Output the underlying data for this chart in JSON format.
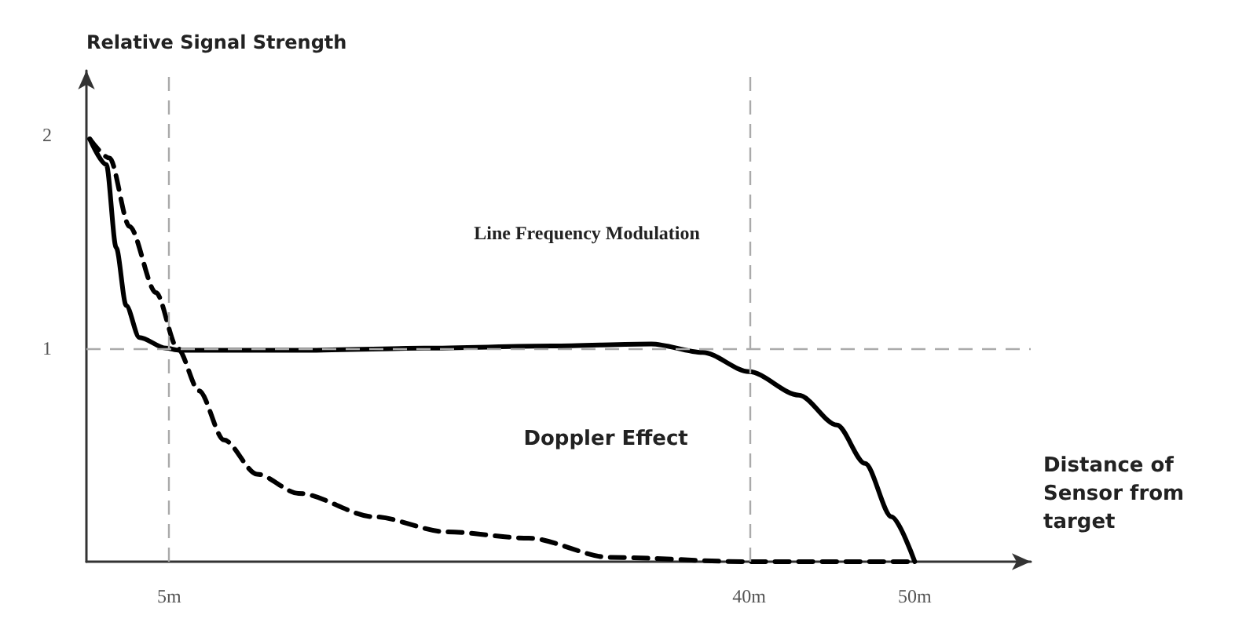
{
  "chart_data": {
    "type": "line",
    "ylabel": "Relative Signal Strength",
    "xlabel": "Distance of Sensor from target",
    "xlim": [
      0,
      57
    ],
    "xticks": [
      {
        "value": 5,
        "label": "5m"
      },
      {
        "value": 40,
        "label": "40m"
      },
      {
        "value": 50,
        "label": "50m"
      }
    ],
    "ylim": [
      0,
      2.3
    ],
    "yticks": [
      1,
      2
    ],
    "grid": false,
    "marker": "none",
    "series": [
      {
        "color": "#000000",
        "line_style": "solid",
        "x": [
          0.2,
          1.2,
          1.8,
          2.4,
          3.2,
          4.8,
          5.6,
          12.8,
          20.4,
          28.1,
          34.1,
          37.2,
          40,
          43,
          45.3,
          47,
          48.6,
          50
        ],
        "values": [
          1.98,
          1.86,
          1.47,
          1.2,
          1.05,
          1.0,
          0.99,
          0.99,
          1.0,
          1.01,
          1.02,
          0.98,
          0.89,
          0.78,
          0.64,
          0.46,
          0.21,
          0
        ]
      },
      {
        "color": "#000000",
        "line_style": "dashed",
        "x": [
          0.2,
          1.4,
          2.6,
          4.2,
          5.5,
          6.8,
          8.3,
          10.3,
          12.8,
          17.4,
          21.7,
          26.7,
          31.6,
          40,
          50
        ],
        "values": [
          1.98,
          1.89,
          1.57,
          1.26,
          1.0,
          0.8,
          0.57,
          0.41,
          0.32,
          0.21,
          0.14,
          0.11,
          0.02,
          0,
          0
        ]
      }
    ],
    "ref_lines": [
      {
        "axis": "x",
        "value": 5,
        "color": "#aaaaaa",
        "line_style": "dashed"
      },
      {
        "axis": "x",
        "value": 40,
        "color": "#aaaaaa",
        "line_style": "dashed"
      },
      {
        "axis": "y",
        "value": 1,
        "color": "#aaaaaa",
        "line_style": "dashed"
      }
    ],
    "annotations": [
      "Line Frequency Modulation",
      "Doppler Effect"
    ]
  }
}
